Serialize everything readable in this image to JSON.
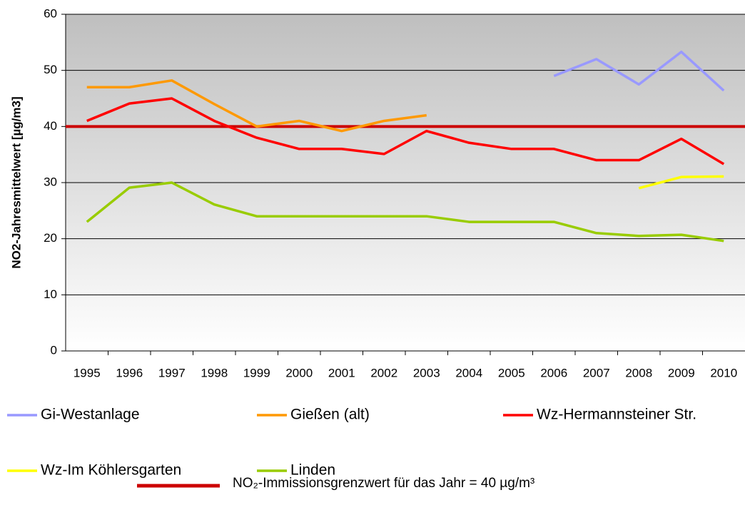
{
  "chart_data": {
    "type": "line",
    "ylabel": "NO2-Jahresmittelwert [µg/m3]",
    "categories": [
      "1995",
      "1996",
      "1997",
      "1998",
      "1999",
      "2000",
      "2001",
      "2002",
      "2003",
      "2004",
      "2005",
      "2006",
      "2007",
      "2008",
      "2009",
      "2010"
    ],
    "series": [
      {
        "name": "Gi-Westanlage",
        "color": "#9999ff",
        "values": [
          null,
          null,
          null,
          null,
          null,
          null,
          null,
          null,
          null,
          null,
          null,
          49,
          52,
          47.5,
          53.3,
          46.4
        ]
      },
      {
        "name": "Gießen (alt)",
        "color": "#ff9900",
        "values": [
          47,
          47,
          48.2,
          44,
          40,
          41,
          39.2,
          41,
          42,
          null,
          null,
          null,
          null,
          null,
          null,
          null
        ]
      },
      {
        "name": "Wz-Hermannsteiner Str.",
        "color": "#ff0000",
        "values": [
          41,
          44.1,
          45,
          41,
          38,
          36,
          36,
          35.1,
          39.2,
          37.1,
          36,
          36,
          34,
          34,
          37.8,
          33.3
        ]
      },
      {
        "name": "Wz-Im Köhlersgarten",
        "color": "#ffff00",
        "values": [
          null,
          null,
          null,
          null,
          null,
          null,
          null,
          null,
          null,
          null,
          null,
          null,
          null,
          29,
          31,
          31.1
        ]
      },
      {
        "name": "Linden",
        "color": "#99cc00",
        "values": [
          23,
          29.1,
          30,
          26.1,
          24,
          24,
          24,
          24,
          24,
          23,
          23,
          23,
          21,
          20.5,
          20.7,
          19.6
        ]
      }
    ],
    "limit": {
      "value": 40,
      "label": "NO₂-Immissionsgrenzwert für das Jahr = 40 µg/m³",
      "color": "#cc0000"
    },
    "ylim": [
      0,
      60
    ],
    "yticks": [
      0,
      10,
      20,
      30,
      40,
      50,
      60
    ],
    "grid": true
  }
}
